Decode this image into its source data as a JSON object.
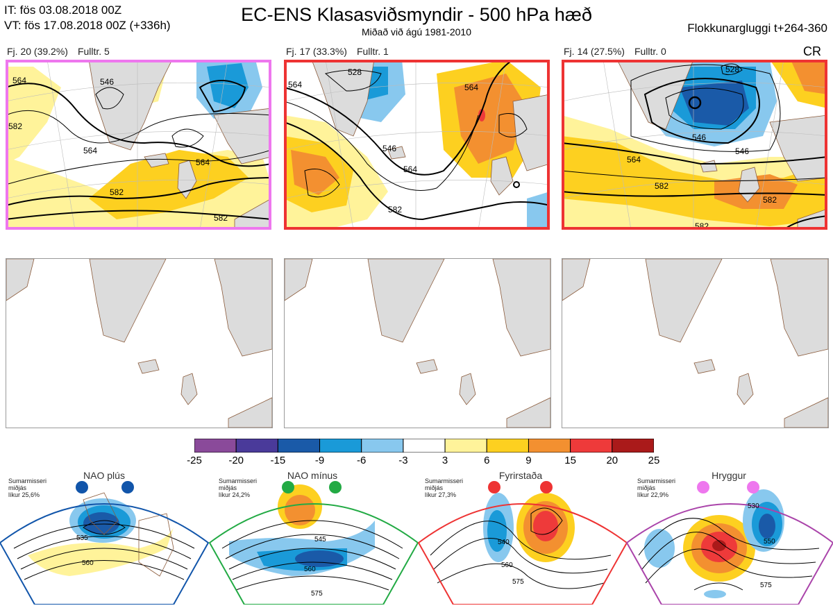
{
  "header": {
    "it_line": "IT: fös 03.08.2018 00Z",
    "vt_line": "VT: fös 17.08.2018 00Z  (+336h)",
    "title": "EC-ENS Klasasviðsmyndir - 500 hPa hæð",
    "subtitle": "Miðað við ágú 1981-2010",
    "window": "Flokkunargluggi t+264-360"
  },
  "clusters": [
    {
      "label": "Fj. 20 (39.2%)",
      "fulltr": "Fulltr. 5",
      "border_color": "#ee77ee",
      "contours": [
        "564",
        "564",
        "582",
        "564",
        "582",
        "582",
        "546"
      ]
    },
    {
      "label": "Fj. 17 (33.3%)",
      "fulltr": "Fulltr. 1",
      "border_color": "#ee3333",
      "contours": [
        "564",
        "528",
        "564",
        "546",
        "564",
        "582"
      ]
    },
    {
      "label": "Fj. 14 (27.5%)",
      "fulltr": "Fulltr. 0",
      "border_color": "#ee3333",
      "contours": [
        "546",
        "564",
        "582",
        "582",
        "582",
        "528",
        "546"
      ]
    }
  ],
  "cr_label": "CR",
  "colorbar": {
    "ticks": [
      "-25",
      "-20",
      "-15",
      "-9",
      "-6",
      "-3",
      "3",
      "6",
      "9",
      "15",
      "20",
      "25"
    ],
    "colors": [
      "#8a4a9a",
      "#4a3a9a",
      "#1a5aa8",
      "#1a9ad8",
      "#88c8ee",
      "#ffffff",
      "#fff39a",
      "#fdd020",
      "#f39030",
      "#ee3a3a",
      "#aa1a1a"
    ]
  },
  "regimes": [
    {
      "name": "NAO plús",
      "season": "Sumarmisseri",
      "mid": "miðjás",
      "prob": "líkur 25,6%",
      "color": "#1155aa",
      "labels": [
        "535",
        "560"
      ]
    },
    {
      "name": "NAO mínus",
      "season": "Sumarmisseri",
      "mid": "miðjás",
      "prob": "líkur 24,2%",
      "color": "#22aa44",
      "labels": [
        "545",
        "560",
        "575"
      ]
    },
    {
      "name": "Fyrirstaða",
      "season": "Sumarmisseri",
      "mid": "miðjás",
      "prob": "líkur 27,3%",
      "color": "#ee3333",
      "labels": [
        "540",
        "560",
        "575"
      ]
    },
    {
      "name": "Hryggur",
      "season": "Sumarmisseri",
      "mid": "miðjás",
      "prob": "líkur 22,9%",
      "color": "#ee77ee",
      "labels": [
        "530",
        "550",
        "575"
      ]
    }
  ],
  "colors": {
    "land": "#dcdcdc",
    "coast": "#8a5a3a",
    "contour": "#000000"
  }
}
